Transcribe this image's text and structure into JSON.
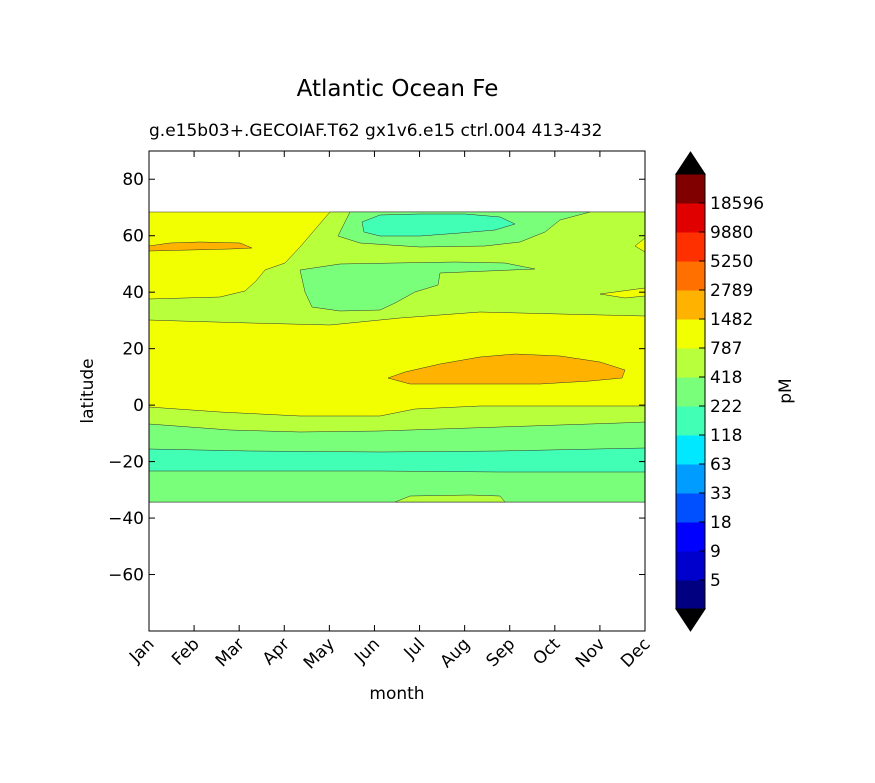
{
  "chart_data": {
    "type": "contourf",
    "title": "Atlantic Ocean Fe",
    "subtitle": "g.e15b03+.GECOIAF.T62 gx1v6.e15 ctrl.004 413-432",
    "xlabel": "month",
    "ylabel": "latitude",
    "x_categories": [
      "Jan",
      "Feb",
      "Mar",
      "Apr",
      "May",
      "Jun",
      "Jul",
      "Aug",
      "Sep",
      "Oct",
      "Nov",
      "Dec"
    ],
    "xlim": [
      "Jan",
      "Dec"
    ],
    "ylim": [
      -80,
      90
    ],
    "y_ticks": [
      80,
      60,
      40,
      20,
      0,
      -20,
      -40,
      -60
    ],
    "data_lat_range": [
      -34,
      69
    ],
    "grid": false,
    "colorbar": {
      "label": "pM",
      "tick_labels": [
        "5",
        "9",
        "18",
        "33",
        "63",
        "118",
        "222",
        "418",
        "787",
        "1482",
        "2789",
        "5250",
        "9880",
        "18596"
      ],
      "extend": "both",
      "colors": [
        "#000080",
        "#0000cd",
        "#0000ff",
        "#0050ff",
        "#009cff",
        "#00e8ff",
        "#41ffb5",
        "#7aff7a",
        "#b8ff3c",
        "#f2ff00",
        "#ffb300",
        "#ff7000",
        "#ff3000",
        "#e00000",
        "#800000"
      ],
      "under_color": "#000000",
      "over_color": "#000000"
    },
    "levels": [
      {
        "name": "118-222",
        "color": "#41ffb5",
        "regions": [
          {
            "months": "Jan-Dec",
            "lat": [
              -23,
              -14
            ]
          },
          {
            "months": "Jun-Aug",
            "lat": [
              61,
              69
            ]
          }
        ]
      },
      {
        "name": "222-418",
        "color": "#7aff7a",
        "regions": [
          {
            "months": "Jan-Dec",
            "lat": [
              -34,
              -23
            ]
          },
          {
            "months": "Jan-Dec",
            "lat": [
              -14,
              -6
            ]
          },
          {
            "months": "May-Sep",
            "lat": [
              35,
              50
            ]
          }
        ]
      },
      {
        "name": "418-787",
        "color": "#b8ff3c",
        "regions": [
          {
            "months": "Jan-Dec",
            "lat": [
              -6,
              0
            ]
          },
          {
            "months": "Jan-Dec",
            "lat": [
              30,
              69
            ]
          }
        ]
      },
      {
        "name": "787-1482",
        "color": "#f2ff00",
        "regions": [
          {
            "months": "Jan-Dec",
            "lat": [
              0,
              31
            ]
          },
          {
            "months": "Jan-Jun",
            "lat": [
              48,
              69
            ]
          }
        ]
      },
      {
        "name": "1482-2789",
        "color": "#ffb300",
        "regions": [
          {
            "months": "Jul-Dec",
            "lat": [
              8,
              18
            ]
          },
          {
            "months": "Jan-Feb",
            "lat": [
              55,
              58
            ]
          }
        ]
      }
    ]
  }
}
